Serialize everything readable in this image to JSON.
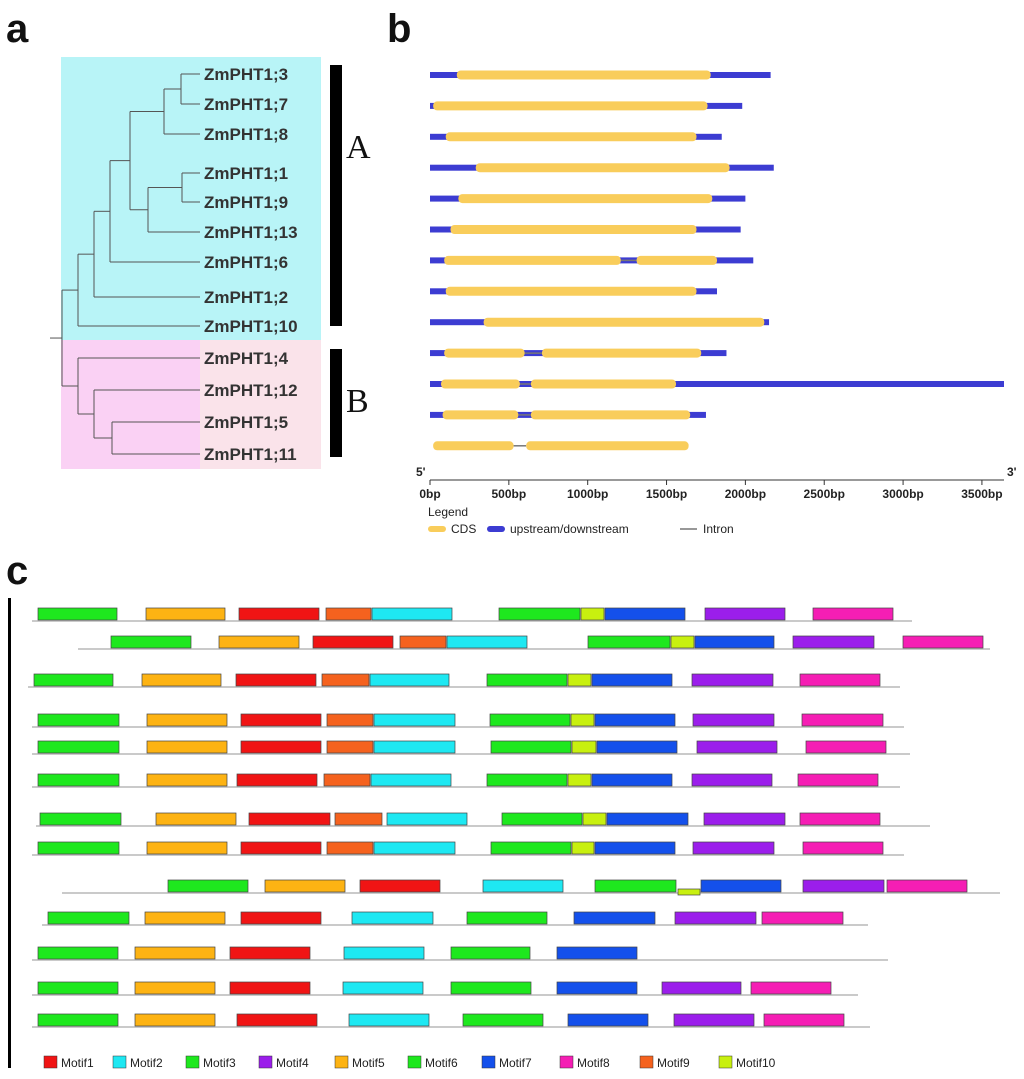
{
  "panels": {
    "a": "a",
    "b": "b",
    "c": "c"
  },
  "tree": {
    "genes": [
      "ZmPHT1;3",
      "ZmPHT1;7",
      "ZmPHT1;8",
      "ZmPHT1;1",
      "ZmPHT1;9",
      "ZmPHT1;13",
      "ZmPHT1;6",
      "ZmPHT1;2",
      "ZmPHT1;10",
      "ZmPHT1;4",
      "ZmPHT1;12",
      "ZmPHT1;5",
      "ZmPHT1;11"
    ],
    "clades": [
      {
        "label": "A",
        "color": "#b8f4f7"
      },
      {
        "label": "B",
        "color": "#fad1f4"
      }
    ],
    "label_bg_b": "#fae3ea"
  },
  "gene_structure": {
    "colors": {
      "cds": "#f9cd5b",
      "utr": "#3c3cd2",
      "intron": "#777777"
    },
    "axis": {
      "end5": "5'",
      "end3": "3'",
      "ticks": [
        "0bp",
        "500bp",
        "1000bp",
        "1500bp",
        "2000bp",
        "2500bp",
        "3000bp",
        "3500bp"
      ],
      "tick_values": [
        0,
        500,
        1000,
        1500,
        2000,
        2500,
        3000,
        3500
      ],
      "max": 3640
    },
    "legend": {
      "title": "Legend",
      "cds": "CDS",
      "utr": "upstream/downstream",
      "intron": "Intron"
    },
    "genes": [
      {
        "utr_start": 0,
        "utr_end": 2160,
        "cds": [
          [
            170,
            1780
          ]
        ]
      },
      {
        "utr_start": 0,
        "utr_end": 1980,
        "cds": [
          [
            20,
            1760
          ]
        ]
      },
      {
        "utr_start": 0,
        "utr_end": 1850,
        "cds": [
          [
            100,
            1690
          ]
        ]
      },
      {
        "utr_start": 0,
        "utr_end": 2180,
        "cds": [
          [
            290,
            1900
          ]
        ]
      },
      {
        "utr_start": 0,
        "utr_end": 2000,
        "cds": [
          [
            180,
            1790
          ]
        ]
      },
      {
        "utr_start": 0,
        "utr_end": 1970,
        "cds": [
          [
            130,
            1690
          ]
        ]
      },
      {
        "utr_start": 0,
        "utr_end": 2050,
        "cds": [
          [
            90,
            1210
          ],
          [
            1310,
            1820
          ]
        ]
      },
      {
        "utr_start": 0,
        "utr_end": 1820,
        "cds": [
          [
            100,
            1690
          ]
        ]
      },
      {
        "utr_start": 0,
        "utr_end": 2150,
        "cds": [
          [
            340,
            2120
          ]
        ]
      },
      {
        "utr_start": 0,
        "utr_end": 1880,
        "cds": [
          [
            90,
            600
          ],
          [
            710,
            1720
          ]
        ]
      },
      {
        "utr_start": 0,
        "utr_end": 3640,
        "cds": [
          [
            70,
            570
          ],
          [
            640,
            1560
          ]
        ]
      },
      {
        "utr_start": 0,
        "utr_end": 1750,
        "cds": [
          [
            80,
            560
          ],
          [
            640,
            1650
          ]
        ]
      },
      {
        "utr_start": 0,
        "utr_end": 0,
        "cds": [
          [
            20,
            530
          ],
          [
            610,
            1640
          ]
        ]
      }
    ]
  },
  "motifs": {
    "legend": [
      {
        "id": 1,
        "label": "Motif1",
        "color": "#f01414"
      },
      {
        "id": 2,
        "label": "Motif2",
        "color": "#1ee8f2"
      },
      {
        "id": 3,
        "label": "Motif3",
        "color": "#1ee81e"
      },
      {
        "id": 4,
        "label": "Motif4",
        "color": "#9b1eeb"
      },
      {
        "id": 5,
        "label": "Motif5",
        "color": "#fdb313"
      },
      {
        "id": 6,
        "label": "Motif6",
        "color": "#1ee81e"
      },
      {
        "id": 7,
        "label": "Motif7",
        "color": "#1450eb"
      },
      {
        "id": 8,
        "label": "Motif8",
        "color": "#f51eb4"
      },
      {
        "id": 9,
        "label": "Motif9",
        "color": "#f5621e"
      },
      {
        "id": 10,
        "label": "Motif10",
        "color": "#c8f00f"
      }
    ],
    "rows": [
      {
        "line": [
          32,
          912
        ],
        "motifs": [
          [
            3,
            38,
            117
          ],
          [
            5,
            146,
            225
          ],
          [
            1,
            239,
            319
          ],
          [
            9,
            326,
            371
          ],
          [
            2,
            372,
            452
          ],
          [
            6,
            499,
            580
          ],
          [
            10,
            581,
            604
          ],
          [
            7,
            605,
            685
          ],
          [
            4,
            705,
            785
          ],
          [
            8,
            813,
            893
          ]
        ]
      },
      {
        "line": [
          78,
          990
        ],
        "motifs": [
          [
            3,
            111,
            191
          ],
          [
            5,
            219,
            299
          ],
          [
            1,
            313,
            393
          ],
          [
            9,
            400,
            446
          ],
          [
            2,
            447,
            527
          ],
          [
            6,
            588,
            670
          ],
          [
            10,
            671,
            694
          ],
          [
            7,
            695,
            774
          ],
          [
            4,
            793,
            874
          ],
          [
            8,
            903,
            983
          ]
        ]
      },
      {
        "line": [
          28,
          900
        ],
        "motifs": [
          [
            3,
            34,
            113
          ],
          [
            5,
            142,
            221
          ],
          [
            1,
            236,
            316
          ],
          [
            9,
            322,
            369
          ],
          [
            2,
            370,
            449
          ],
          [
            6,
            487,
            567
          ],
          [
            10,
            568,
            591
          ],
          [
            7,
            592,
            672
          ],
          [
            4,
            692,
            773
          ],
          [
            8,
            800,
            880
          ]
        ]
      },
      {
        "line": [
          32,
          904
        ],
        "motifs": [
          [
            3,
            38,
            119
          ],
          [
            5,
            147,
            227
          ],
          [
            1,
            241,
            321
          ],
          [
            9,
            327,
            373
          ],
          [
            2,
            374,
            455
          ],
          [
            6,
            490,
            570
          ],
          [
            10,
            571,
            594
          ],
          [
            7,
            595,
            675
          ],
          [
            4,
            693,
            774
          ],
          [
            8,
            802,
            883
          ]
        ]
      },
      {
        "line": [
          32,
          910
        ],
        "motifs": [
          [
            3,
            38,
            119
          ],
          [
            5,
            147,
            227
          ],
          [
            1,
            241,
            321
          ],
          [
            9,
            327,
            373
          ],
          [
            2,
            374,
            455
          ],
          [
            6,
            491,
            571
          ],
          [
            10,
            572,
            596
          ],
          [
            7,
            597,
            677
          ],
          [
            4,
            697,
            777
          ],
          [
            8,
            806,
            886
          ]
        ]
      },
      {
        "line": [
          32,
          900
        ],
        "motifs": [
          [
            3,
            38,
            119
          ],
          [
            5,
            147,
            227
          ],
          [
            1,
            237,
            317
          ],
          [
            9,
            324,
            370
          ],
          [
            2,
            371,
            451
          ],
          [
            6,
            487,
            567
          ],
          [
            10,
            568,
            591
          ],
          [
            7,
            592,
            672
          ],
          [
            4,
            692,
            772
          ],
          [
            8,
            798,
            878
          ]
        ]
      },
      {
        "line": [
          36,
          930
        ],
        "motifs": [
          [
            3,
            40,
            121
          ],
          [
            5,
            156,
            236
          ],
          [
            1,
            249,
            330
          ],
          [
            9,
            335,
            382
          ],
          [
            2,
            387,
            467
          ],
          [
            6,
            502,
            582
          ],
          [
            10,
            583,
            606
          ],
          [
            7,
            607,
            688
          ],
          [
            4,
            704,
            785
          ],
          [
            8,
            800,
            880
          ]
        ]
      },
      {
        "line": [
          32,
          904
        ],
        "motifs": [
          [
            3,
            38,
            119
          ],
          [
            5,
            147,
            227
          ],
          [
            1,
            241,
            321
          ],
          [
            9,
            327,
            373
          ],
          [
            2,
            374,
            455
          ],
          [
            6,
            491,
            571
          ],
          [
            10,
            572,
            594
          ],
          [
            7,
            595,
            675
          ],
          [
            4,
            693,
            774
          ],
          [
            8,
            803,
            883
          ]
        ]
      },
      {
        "line": [
          62,
          1000
        ],
        "motifs": [
          [
            3,
            168,
            248
          ],
          [
            5,
            265,
            345
          ],
          [
            1,
            360,
            440
          ],
          [
            2,
            483,
            563
          ],
          [
            6,
            595,
            676
          ],
          [
            10,
            678,
            700
          ],
          [
            7,
            701,
            781
          ],
          [
            4,
            803,
            884
          ],
          [
            8,
            887,
            967
          ]
        ]
      },
      {
        "line": [
          42,
          868
        ],
        "motifs": [
          [
            3,
            48,
            129
          ],
          [
            5,
            145,
            225
          ],
          [
            1,
            241,
            321
          ],
          [
            2,
            352,
            433
          ],
          [
            6,
            467,
            547
          ],
          [
            7,
            574,
            655
          ],
          [
            4,
            675,
            756
          ],
          [
            8,
            762,
            843
          ]
        ]
      },
      {
        "line": [
          32,
          888
        ],
        "motifs": [
          [
            3,
            38,
            118
          ],
          [
            5,
            135,
            215
          ],
          [
            1,
            230,
            310
          ],
          [
            2,
            344,
            424
          ],
          [
            6,
            451,
            530
          ],
          [
            7,
            557,
            637
          ]
        ]
      },
      {
        "line": [
          32,
          858
        ],
        "motifs": [
          [
            3,
            38,
            118
          ],
          [
            5,
            135,
            215
          ],
          [
            1,
            230,
            310
          ],
          [
            2,
            343,
            423
          ],
          [
            6,
            451,
            531
          ],
          [
            7,
            557,
            637
          ],
          [
            4,
            662,
            741
          ],
          [
            8,
            751,
            831
          ]
        ]
      },
      {
        "line": [
          32,
          870
        ],
        "motifs": [
          [
            3,
            38,
            118
          ],
          [
            5,
            135,
            215
          ],
          [
            1,
            237,
            317
          ],
          [
            2,
            349,
            429
          ],
          [
            6,
            463,
            543
          ],
          [
            7,
            568,
            648
          ],
          [
            4,
            674,
            754
          ],
          [
            8,
            764,
            844
          ]
        ]
      }
    ]
  }
}
